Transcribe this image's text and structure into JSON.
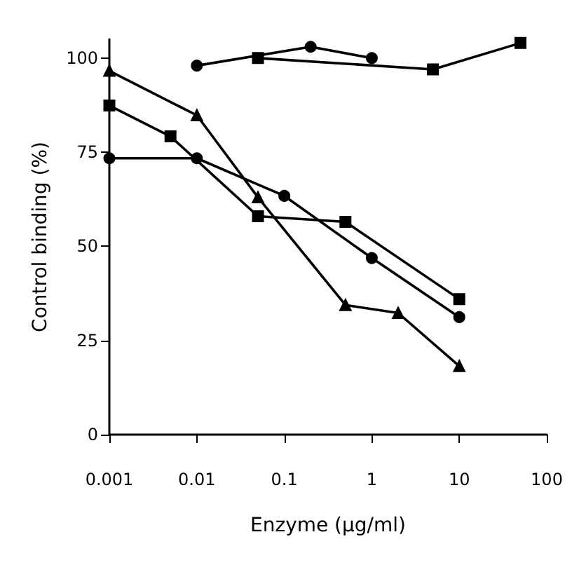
{
  "chart_data": {
    "type": "line",
    "xlabel": "Enzyme (μg/ml)",
    "ylabel": "Control binding (%)",
    "log": "x",
    "xlim": [
      0.001,
      100
    ],
    "xticks": [
      0.001,
      0.01,
      0.1,
      1,
      10,
      100
    ],
    "ylim": [
      0,
      105
    ],
    "yticks": [
      0,
      25,
      50,
      75,
      100
    ],
    "grid": false,
    "line_style": "solid",
    "series": [
      {
        "color": "#000000",
        "marker": "circle",
        "x": [
          0.01,
          0.2,
          1
        ],
        "values": [
          98,
          103,
          100
        ]
      },
      {
        "color": "#000000",
        "marker": "square",
        "x": [
          0.05,
          5,
          50
        ],
        "values": [
          100,
          97,
          104
        ]
      },
      {
        "color": "#000000",
        "marker": "triangle",
        "x": [
          0.001,
          0.01,
          0.05,
          0.5,
          2,
          10
        ],
        "values": [
          96.6,
          84.8,
          63,
          34.4,
          32.3,
          18.2
        ]
      },
      {
        "color": "#000000",
        "marker": "square",
        "x": [
          0.001,
          0.005,
          0.05,
          0.5,
          10
        ],
        "values": [
          87.4,
          79.2,
          58,
          56.5,
          36
        ]
      },
      {
        "color": "#000000",
        "marker": "circle",
        "x": [
          0.001,
          0.01,
          0.1,
          1,
          10
        ],
        "values": [
          73.4,
          73.4,
          63.4,
          46.9,
          31.2
        ]
      }
    ]
  }
}
